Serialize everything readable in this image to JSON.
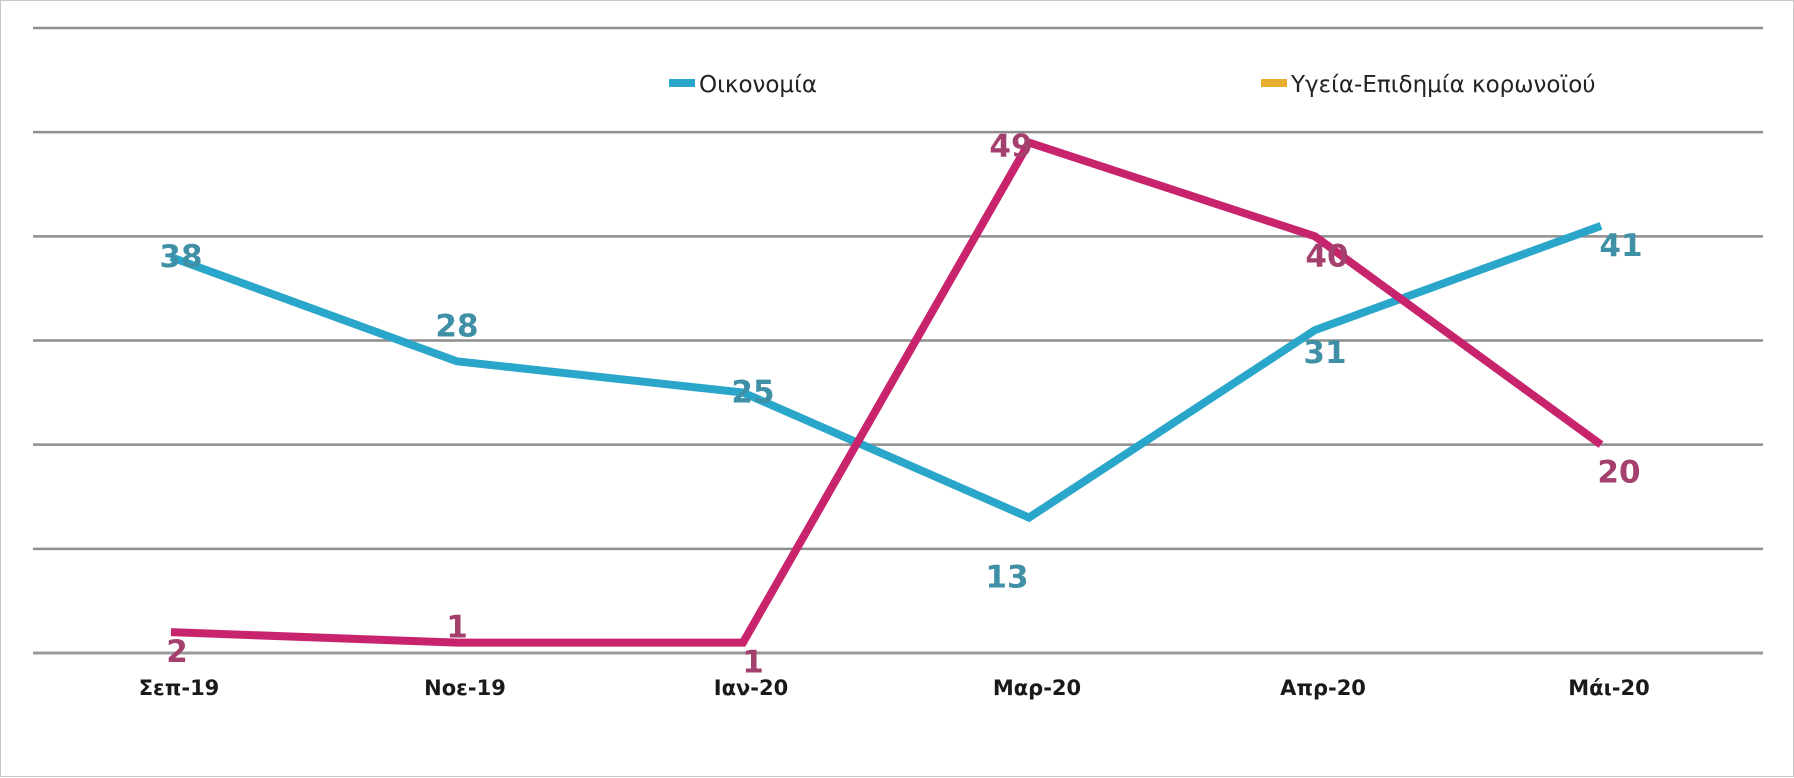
{
  "chart_data": {
    "type": "line",
    "categories": [
      "Σεπ-19",
      "Νοε-19",
      "Ιαν-20",
      "Μαρ-20",
      "Απρ-20",
      "Μάι-20"
    ],
    "series": [
      {
        "name": "Οικονομία",
        "color": "#29a6c9",
        "label_color": "#3f8fa6",
        "values": [
          38,
          28,
          25,
          13,
          31,
          41
        ]
      },
      {
        "name": "Υγεία-Επιδημία κορωνοϊού",
        "color": "#c8246e",
        "label_color": "#a3406e",
        "legend_color": "#e6ad2e",
        "values": [
          2,
          1,
          1,
          49,
          40,
          20
        ]
      }
    ],
    "ylim": [
      0,
      60
    ],
    "grid": true,
    "legend_position": "top",
    "title": "",
    "xlabel": "",
    "ylabel": ""
  }
}
